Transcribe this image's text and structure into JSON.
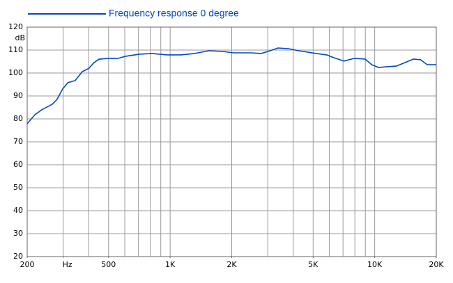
{
  "chart_data": {
    "type": "line",
    "xscale": "log",
    "x": [
      200,
      218,
      236,
      265,
      280,
      298,
      316,
      343,
      372,
      400,
      424,
      448,
      496,
      558,
      606,
      707,
      814,
      965,
      1129,
      1319,
      1548,
      1814,
      2037,
      2474,
      2783,
      3008,
      3370,
      3787,
      4259,
      5177,
      5820,
      6290,
      7080,
      7965,
      8960,
      9690,
      10470,
      11320,
      12740,
      13770,
      15490,
      16740,
      18090,
      20000
    ],
    "series": [
      {
        "name": "Frequency response 0 degree",
        "color": "#0047c8",
        "values": [
          77.9,
          81.8,
          84,
          86.4,
          88.5,
          93,
          95.8,
          96.7,
          100.6,
          102,
          104.5,
          106,
          106.4,
          106.4,
          107.3,
          108.2,
          108.5,
          107.9,
          107.9,
          108.5,
          109.7,
          109.4,
          108.8,
          108.8,
          108.5,
          109.4,
          110.9,
          110.6,
          109.7,
          108.5,
          107.9,
          106.7,
          105.2,
          106.4,
          106.1,
          103.6,
          102.4,
          102.7,
          103,
          104.2,
          106.1,
          105.8,
          103.6,
          103.6
        ]
      }
    ],
    "xlim": [
      200,
      20000
    ],
    "xticks": [
      200,
      {
        "value": 300,
        "label": "Hz"
      },
      500,
      {
        "value": 1000,
        "label": "1K"
      },
      {
        "value": 2000,
        "label": "2K"
      },
      {
        "value": 5000,
        "label": "5K"
      },
      {
        "value": 10000,
        "label": "10K"
      },
      {
        "value": 20000,
        "label": "20K"
      }
    ],
    "xgrid": [
      300,
      400,
      500,
      600,
      700,
      800,
      900,
      1000,
      2000,
      3000,
      4000,
      5000,
      6000,
      7000,
      8000,
      9000,
      10000
    ],
    "ylim": [
      20,
      120
    ],
    "yticks": [
      20,
      30,
      40,
      50,
      60,
      70,
      80,
      90,
      100,
      110,
      120
    ],
    "ylabel": "dB",
    "grid": true,
    "legend": "top-left"
  }
}
